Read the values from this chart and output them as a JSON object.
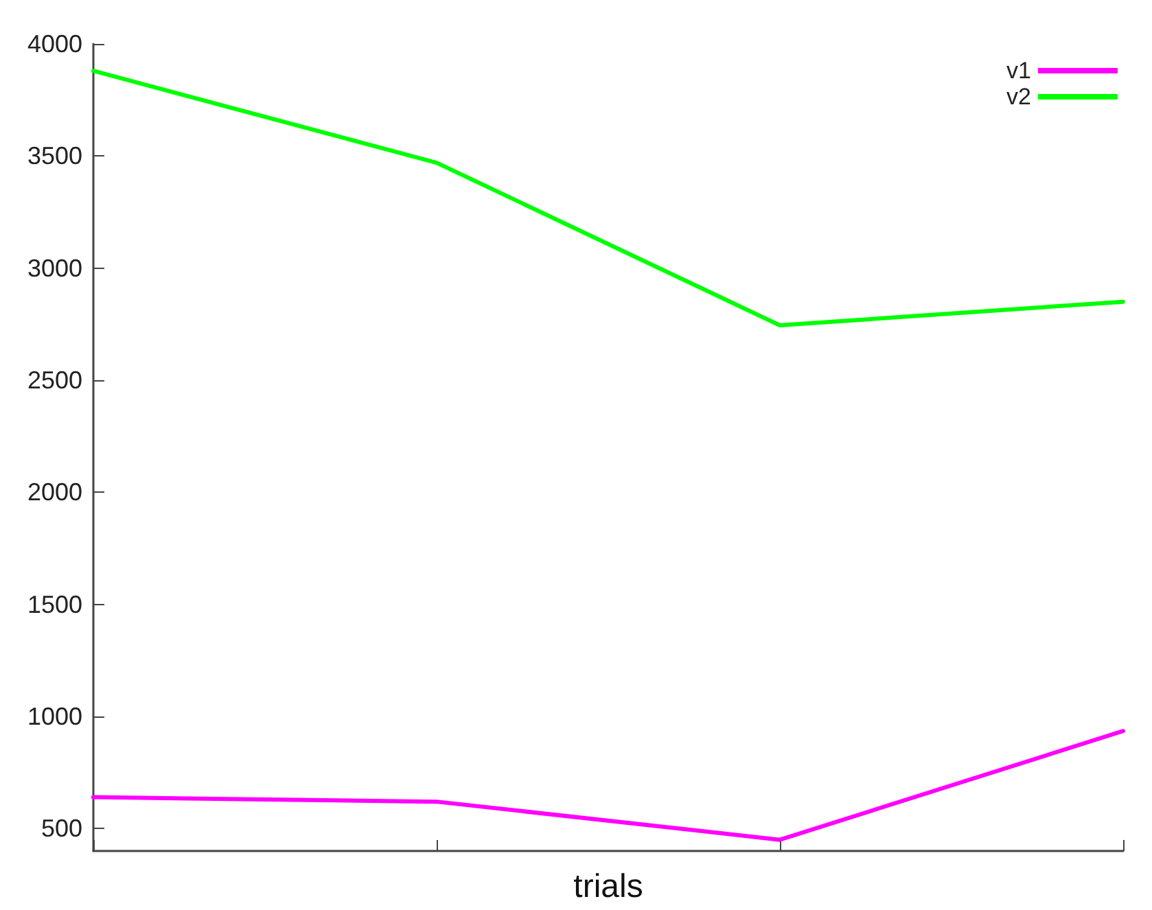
{
  "chart_data": {
    "type": "line",
    "xlabel": "trials",
    "categories": [
      null,
      null,
      null,
      null
    ],
    "series": [
      {
        "name": "v1",
        "color": "#ff00ff",
        "values": [
          640,
          620,
          450,
          935
        ]
      },
      {
        "name": "v2",
        "color": "#00ff00",
        "values": [
          3880,
          3470,
          2745,
          2850
        ]
      }
    ],
    "ylim": [
      400,
      4000
    ],
    "yticks": [
      500,
      1000,
      1500,
      2000,
      2500,
      3000,
      3500,
      4000
    ],
    "tick_labels": "y",
    "grid": false,
    "legend": "top right",
    "marker": "none",
    "line_style": "solid"
  }
}
